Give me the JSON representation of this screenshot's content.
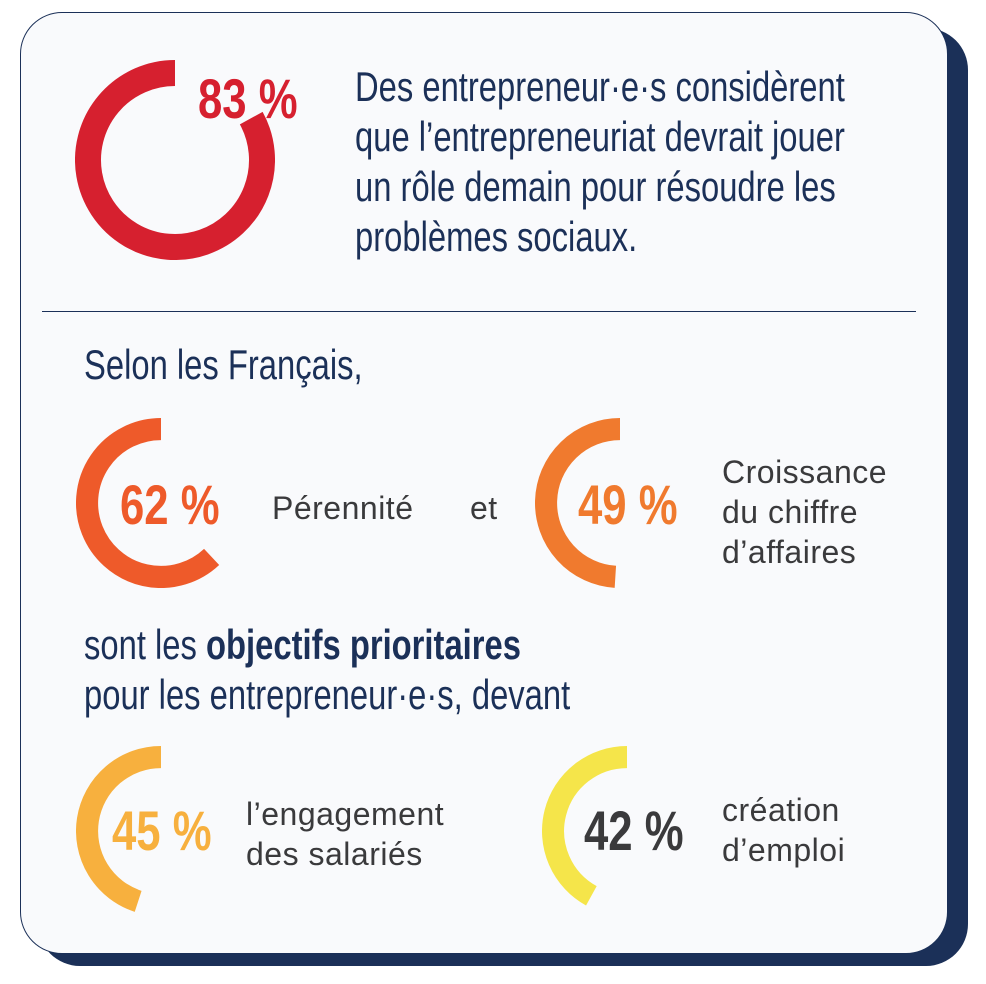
{
  "colors": {
    "navy": "#1b3058",
    "red": "#d6202f",
    "orange_red": "#ee5a2a",
    "orange": "#f07a2e",
    "amber": "#f7b03e",
    "yellow": "#f5e54a",
    "gray": "#3a3a3c"
  },
  "top": {
    "value": 83,
    "percent": "83 %",
    "text": [
      "Des entrepreneur·e·s considèrent",
      "que l’entrepreneuriat devrait jouer",
      "un rôle demain pour résoudre les",
      "problèmes sociaux."
    ]
  },
  "intro": "Selon les Français,",
  "goals": [
    {
      "value": 62,
      "percent": "62 %",
      "label": [
        "Pérennité"
      ]
    },
    {
      "value": 49,
      "percent": "49 %",
      "label": [
        "Croissance",
        "du chiffre",
        "d’affaires"
      ]
    },
    {
      "value": 45,
      "percent": "45 %",
      "label": [
        "l’engagement",
        "des salariés"
      ]
    },
    {
      "value": 42,
      "percent": "42 %",
      "label": [
        "création",
        "d’emploi"
      ]
    }
  ],
  "connector": "et",
  "middle": {
    "prefix": "sont les ",
    "bold": "objectifs prioritaires",
    "line2": "pour les entrepreneur·e·s, devant"
  }
}
